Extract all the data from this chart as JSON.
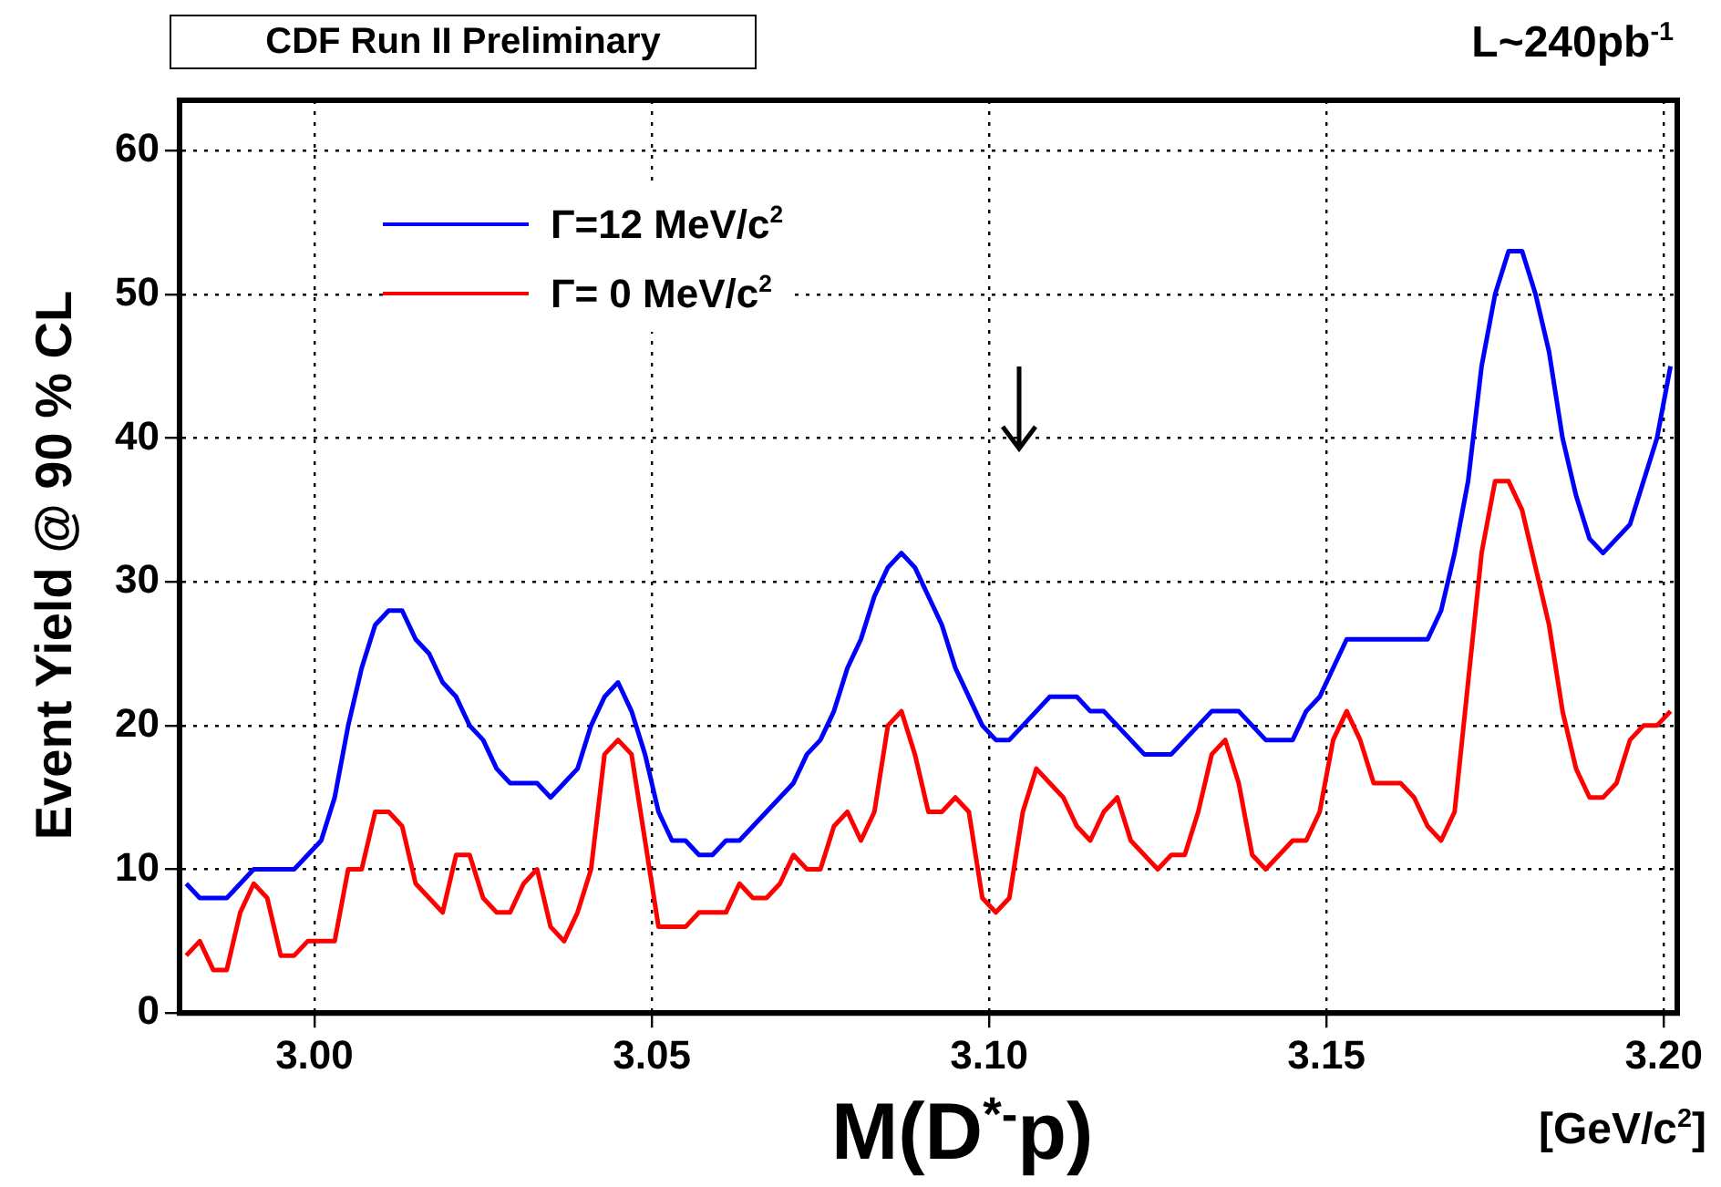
{
  "chart_data": {
    "type": "line",
    "title": "CDF Run II Preliminary",
    "xlabel": "M(D$^{*-}$p)",
    "ylabel": "Event Yield @ 90 % CL",
    "annotations": [
      "L~240pb$^{-1}$",
      "[GeV/c$^{2}$]"
    ],
    "x": [
      2.981,
      2.983,
      2.985,
      2.987,
      2.989,
      2.991,
      2.993,
      2.995,
      2.997,
      2.999,
      3.001,
      3.003,
      3.005,
      3.007,
      3.009,
      3.011,
      3.013,
      3.015,
      3.017,
      3.019,
      3.021,
      3.023,
      3.025,
      3.027,
      3.029,
      3.031,
      3.033,
      3.035,
      3.037,
      3.039,
      3.041,
      3.043,
      3.045,
      3.047,
      3.049,
      3.051,
      3.053,
      3.055,
      3.057,
      3.059,
      3.061,
      3.063,
      3.065,
      3.067,
      3.069,
      3.071,
      3.073,
      3.075,
      3.077,
      3.079,
      3.081,
      3.083,
      3.085,
      3.087,
      3.089,
      3.091,
      3.093,
      3.095,
      3.097,
      3.099,
      3.101,
      3.103,
      3.105,
      3.107,
      3.109,
      3.111,
      3.113,
      3.115,
      3.117,
      3.119,
      3.121,
      3.123,
      3.125,
      3.127,
      3.129,
      3.131,
      3.133,
      3.135,
      3.137,
      3.139,
      3.141,
      3.143,
      3.145,
      3.147,
      3.149,
      3.151,
      3.153,
      3.155,
      3.157,
      3.159,
      3.161,
      3.163,
      3.165,
      3.167,
      3.169,
      3.171,
      3.173,
      3.175,
      3.177,
      3.179,
      3.181,
      3.183,
      3.185,
      3.187,
      3.189,
      3.191,
      3.193,
      3.195,
      3.197,
      3.199,
      3.201
    ],
    "series": [
      {
        "name": "Γ=12 MeV/c$^{2}$",
        "color": "#0000ff",
        "values": [
          9,
          8,
          8,
          8,
          9,
          10,
          10,
          10,
          10,
          11,
          12,
          15,
          20,
          24,
          27,
          28,
          28,
          26,
          25,
          23,
          22,
          20,
          19,
          17,
          16,
          16,
          16,
          15,
          16,
          17,
          20,
          22,
          23,
          21,
          18,
          14,
          12,
          12,
          11,
          11,
          12,
          12,
          13,
          14,
          15,
          16,
          18,
          19,
          21,
          24,
          26,
          29,
          31,
          32,
          31,
          29,
          27,
          24,
          22,
          20,
          19,
          19,
          20,
          21,
          22,
          22,
          22,
          21,
          21,
          20,
          19,
          18,
          18,
          18,
          19,
          20,
          21,
          21,
          21,
          20,
          19,
          19,
          19,
          21,
          22,
          24,
          26,
          26,
          26,
          26,
          26,
          26,
          26,
          28,
          32,
          37,
          45,
          50,
          53,
          53,
          50,
          46,
          40,
          36,
          33,
          32,
          33,
          34,
          37,
          40,
          45
        ]
      },
      {
        "name": "Γ= 0 MeV/c$^{2}$",
        "color": "#ff0000",
        "values": [
          4,
          5,
          3,
          3,
          7,
          9,
          8,
          4,
          4,
          5,
          5,
          5,
          10,
          10,
          14,
          14,
          13,
          9,
          8,
          7,
          11,
          11,
          8,
          7,
          7,
          9,
          10,
          6,
          5,
          7,
          10,
          18,
          19,
          18,
          12,
          6,
          6,
          6,
          7,
          7,
          7,
          9,
          8,
          8,
          9,
          11,
          10,
          10,
          13,
          14,
          12,
          14,
          20,
          21,
          18,
          14,
          14,
          15,
          14,
          8,
          7,
          8,
          14,
          17,
          16,
          15,
          13,
          12,
          14,
          15,
          12,
          11,
          10,
          11,
          11,
          14,
          18,
          19,
          16,
          11,
          10,
          11,
          12,
          12,
          14,
          19,
          21,
          19,
          16,
          16,
          16,
          15,
          13,
          12,
          14,
          23,
          32,
          37,
          37,
          35,
          31,
          27,
          21,
          17,
          15,
          15,
          16,
          19,
          20,
          20,
          21
        ]
      }
    ],
    "xlim": [
      2.98,
      3.202
    ],
    "ylim": [
      0,
      63.5
    ],
    "xticks": [
      {
        "value": 3,
        "label": "3.00"
      },
      {
        "value": 3.05,
        "label": "3.05"
      },
      {
        "value": 3.1,
        "label": "3.10"
      },
      {
        "value": 3.15,
        "label": "3.15"
      },
      {
        "value": 3.2,
        "label": "3.20"
      }
    ],
    "yticks": [
      0,
      10,
      20,
      30,
      40,
      50,
      60
    ],
    "grid": true,
    "legend": "top left",
    "marker": "none",
    "line_style": "solid"
  }
}
